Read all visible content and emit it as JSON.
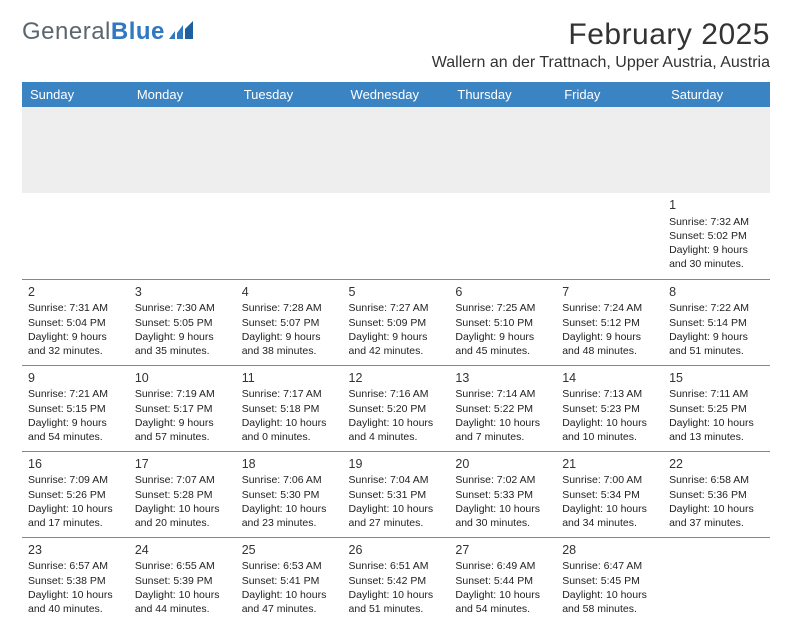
{
  "brand": {
    "name_a": "General",
    "name_b": "Blue"
  },
  "title": "February 2025",
  "location": "Wallern an der Trattnach, Upper Austria, Austria",
  "colors": {
    "header_bg": "#3b84c4",
    "header_text": "#ffffff",
    "border": "#7c8a96",
    "empty_bg": "#eeeeee",
    "text": "#222222",
    "brand_grey": "#5b6770",
    "brand_blue": "#2f78c2"
  },
  "days": [
    "Sunday",
    "Monday",
    "Tuesday",
    "Wednesday",
    "Thursday",
    "Friday",
    "Saturday"
  ],
  "weeks": [
    [
      null,
      null,
      null,
      null,
      null,
      null,
      {
        "n": "1",
        "sr": "Sunrise: 7:32 AM",
        "ss": "Sunset: 5:02 PM",
        "dl1": "Daylight: 9 hours",
        "dl2": "and 30 minutes."
      }
    ],
    [
      {
        "n": "2",
        "sr": "Sunrise: 7:31 AM",
        "ss": "Sunset: 5:04 PM",
        "dl1": "Daylight: 9 hours",
        "dl2": "and 32 minutes."
      },
      {
        "n": "3",
        "sr": "Sunrise: 7:30 AM",
        "ss": "Sunset: 5:05 PM",
        "dl1": "Daylight: 9 hours",
        "dl2": "and 35 minutes."
      },
      {
        "n": "4",
        "sr": "Sunrise: 7:28 AM",
        "ss": "Sunset: 5:07 PM",
        "dl1": "Daylight: 9 hours",
        "dl2": "and 38 minutes."
      },
      {
        "n": "5",
        "sr": "Sunrise: 7:27 AM",
        "ss": "Sunset: 5:09 PM",
        "dl1": "Daylight: 9 hours",
        "dl2": "and 42 minutes."
      },
      {
        "n": "6",
        "sr": "Sunrise: 7:25 AM",
        "ss": "Sunset: 5:10 PM",
        "dl1": "Daylight: 9 hours",
        "dl2": "and 45 minutes."
      },
      {
        "n": "7",
        "sr": "Sunrise: 7:24 AM",
        "ss": "Sunset: 5:12 PM",
        "dl1": "Daylight: 9 hours",
        "dl2": "and 48 minutes."
      },
      {
        "n": "8",
        "sr": "Sunrise: 7:22 AM",
        "ss": "Sunset: 5:14 PM",
        "dl1": "Daylight: 9 hours",
        "dl2": "and 51 minutes."
      }
    ],
    [
      {
        "n": "9",
        "sr": "Sunrise: 7:21 AM",
        "ss": "Sunset: 5:15 PM",
        "dl1": "Daylight: 9 hours",
        "dl2": "and 54 minutes."
      },
      {
        "n": "10",
        "sr": "Sunrise: 7:19 AM",
        "ss": "Sunset: 5:17 PM",
        "dl1": "Daylight: 9 hours",
        "dl2": "and 57 minutes."
      },
      {
        "n": "11",
        "sr": "Sunrise: 7:17 AM",
        "ss": "Sunset: 5:18 PM",
        "dl1": "Daylight: 10 hours",
        "dl2": "and 0 minutes."
      },
      {
        "n": "12",
        "sr": "Sunrise: 7:16 AM",
        "ss": "Sunset: 5:20 PM",
        "dl1": "Daylight: 10 hours",
        "dl2": "and 4 minutes."
      },
      {
        "n": "13",
        "sr": "Sunrise: 7:14 AM",
        "ss": "Sunset: 5:22 PM",
        "dl1": "Daylight: 10 hours",
        "dl2": "and 7 minutes."
      },
      {
        "n": "14",
        "sr": "Sunrise: 7:13 AM",
        "ss": "Sunset: 5:23 PM",
        "dl1": "Daylight: 10 hours",
        "dl2": "and 10 minutes."
      },
      {
        "n": "15",
        "sr": "Sunrise: 7:11 AM",
        "ss": "Sunset: 5:25 PM",
        "dl1": "Daylight: 10 hours",
        "dl2": "and 13 minutes."
      }
    ],
    [
      {
        "n": "16",
        "sr": "Sunrise: 7:09 AM",
        "ss": "Sunset: 5:26 PM",
        "dl1": "Daylight: 10 hours",
        "dl2": "and 17 minutes."
      },
      {
        "n": "17",
        "sr": "Sunrise: 7:07 AM",
        "ss": "Sunset: 5:28 PM",
        "dl1": "Daylight: 10 hours",
        "dl2": "and 20 minutes."
      },
      {
        "n": "18",
        "sr": "Sunrise: 7:06 AM",
        "ss": "Sunset: 5:30 PM",
        "dl1": "Daylight: 10 hours",
        "dl2": "and 23 minutes."
      },
      {
        "n": "19",
        "sr": "Sunrise: 7:04 AM",
        "ss": "Sunset: 5:31 PM",
        "dl1": "Daylight: 10 hours",
        "dl2": "and 27 minutes."
      },
      {
        "n": "20",
        "sr": "Sunrise: 7:02 AM",
        "ss": "Sunset: 5:33 PM",
        "dl1": "Daylight: 10 hours",
        "dl2": "and 30 minutes."
      },
      {
        "n": "21",
        "sr": "Sunrise: 7:00 AM",
        "ss": "Sunset: 5:34 PM",
        "dl1": "Daylight: 10 hours",
        "dl2": "and 34 minutes."
      },
      {
        "n": "22",
        "sr": "Sunrise: 6:58 AM",
        "ss": "Sunset: 5:36 PM",
        "dl1": "Daylight: 10 hours",
        "dl2": "and 37 minutes."
      }
    ],
    [
      {
        "n": "23",
        "sr": "Sunrise: 6:57 AM",
        "ss": "Sunset: 5:38 PM",
        "dl1": "Daylight: 10 hours",
        "dl2": "and 40 minutes."
      },
      {
        "n": "24",
        "sr": "Sunrise: 6:55 AM",
        "ss": "Sunset: 5:39 PM",
        "dl1": "Daylight: 10 hours",
        "dl2": "and 44 minutes."
      },
      {
        "n": "25",
        "sr": "Sunrise: 6:53 AM",
        "ss": "Sunset: 5:41 PM",
        "dl1": "Daylight: 10 hours",
        "dl2": "and 47 minutes."
      },
      {
        "n": "26",
        "sr": "Sunrise: 6:51 AM",
        "ss": "Sunset: 5:42 PM",
        "dl1": "Daylight: 10 hours",
        "dl2": "and 51 minutes."
      },
      {
        "n": "27",
        "sr": "Sunrise: 6:49 AM",
        "ss": "Sunset: 5:44 PM",
        "dl1": "Daylight: 10 hours",
        "dl2": "and 54 minutes."
      },
      {
        "n": "28",
        "sr": "Sunrise: 6:47 AM",
        "ss": "Sunset: 5:45 PM",
        "dl1": "Daylight: 10 hours",
        "dl2": "and 58 minutes."
      },
      null
    ]
  ]
}
